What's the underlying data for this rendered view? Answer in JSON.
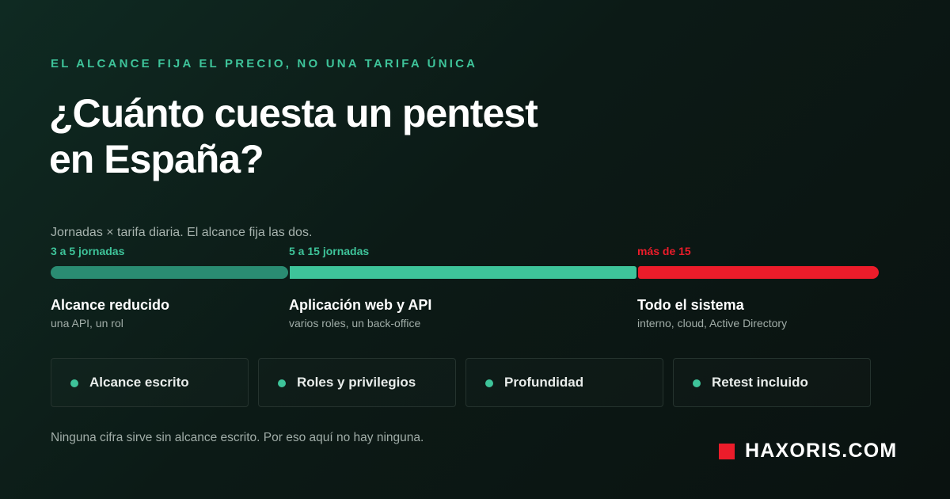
{
  "header": {
    "eyebrow": "EL ALCANCE FIJA EL PRECIO, NO UNA TARIFA ÚNICA",
    "title_line1": "¿Cuánto cuesta un pentest",
    "title_line2": "en España?"
  },
  "scale": {
    "formula": "Jornadas × tarifa diaria. El alcance fija las dos.",
    "segments": [
      {
        "range": "3 a 5 jornadas",
        "title": "Alcance reducido",
        "subtitle": "una API, un rol",
        "color": "#2a8c72",
        "range_color": "#3ec49a"
      },
      {
        "range": "5 a 15 jornadas",
        "title": "Aplicación web y API",
        "subtitle": "varios roles, un back-office",
        "color": "#3ec49a",
        "range_color": "#3ec49a"
      },
      {
        "range": "más de 15",
        "title": "Todo el sistema",
        "subtitle": "interno, cloud, Active Directory",
        "color": "#ec1c2a",
        "range_color": "#ec1c2a"
      }
    ]
  },
  "factors": [
    {
      "label": "Alcance escrito"
    },
    {
      "label": "Roles y privilegios"
    },
    {
      "label": "Profundidad"
    },
    {
      "label": "Retest incluido"
    }
  ],
  "footer": {
    "note": "Ninguna cifra sirve sin alcance escrito. Por eso aquí no hay ninguna.",
    "brand": "HAXORIS.COM"
  },
  "colors": {
    "accent": "#3ec49a",
    "accent_dark": "#2a8c72",
    "brand_red": "#ec1c2a",
    "background": "#0c1a16"
  }
}
